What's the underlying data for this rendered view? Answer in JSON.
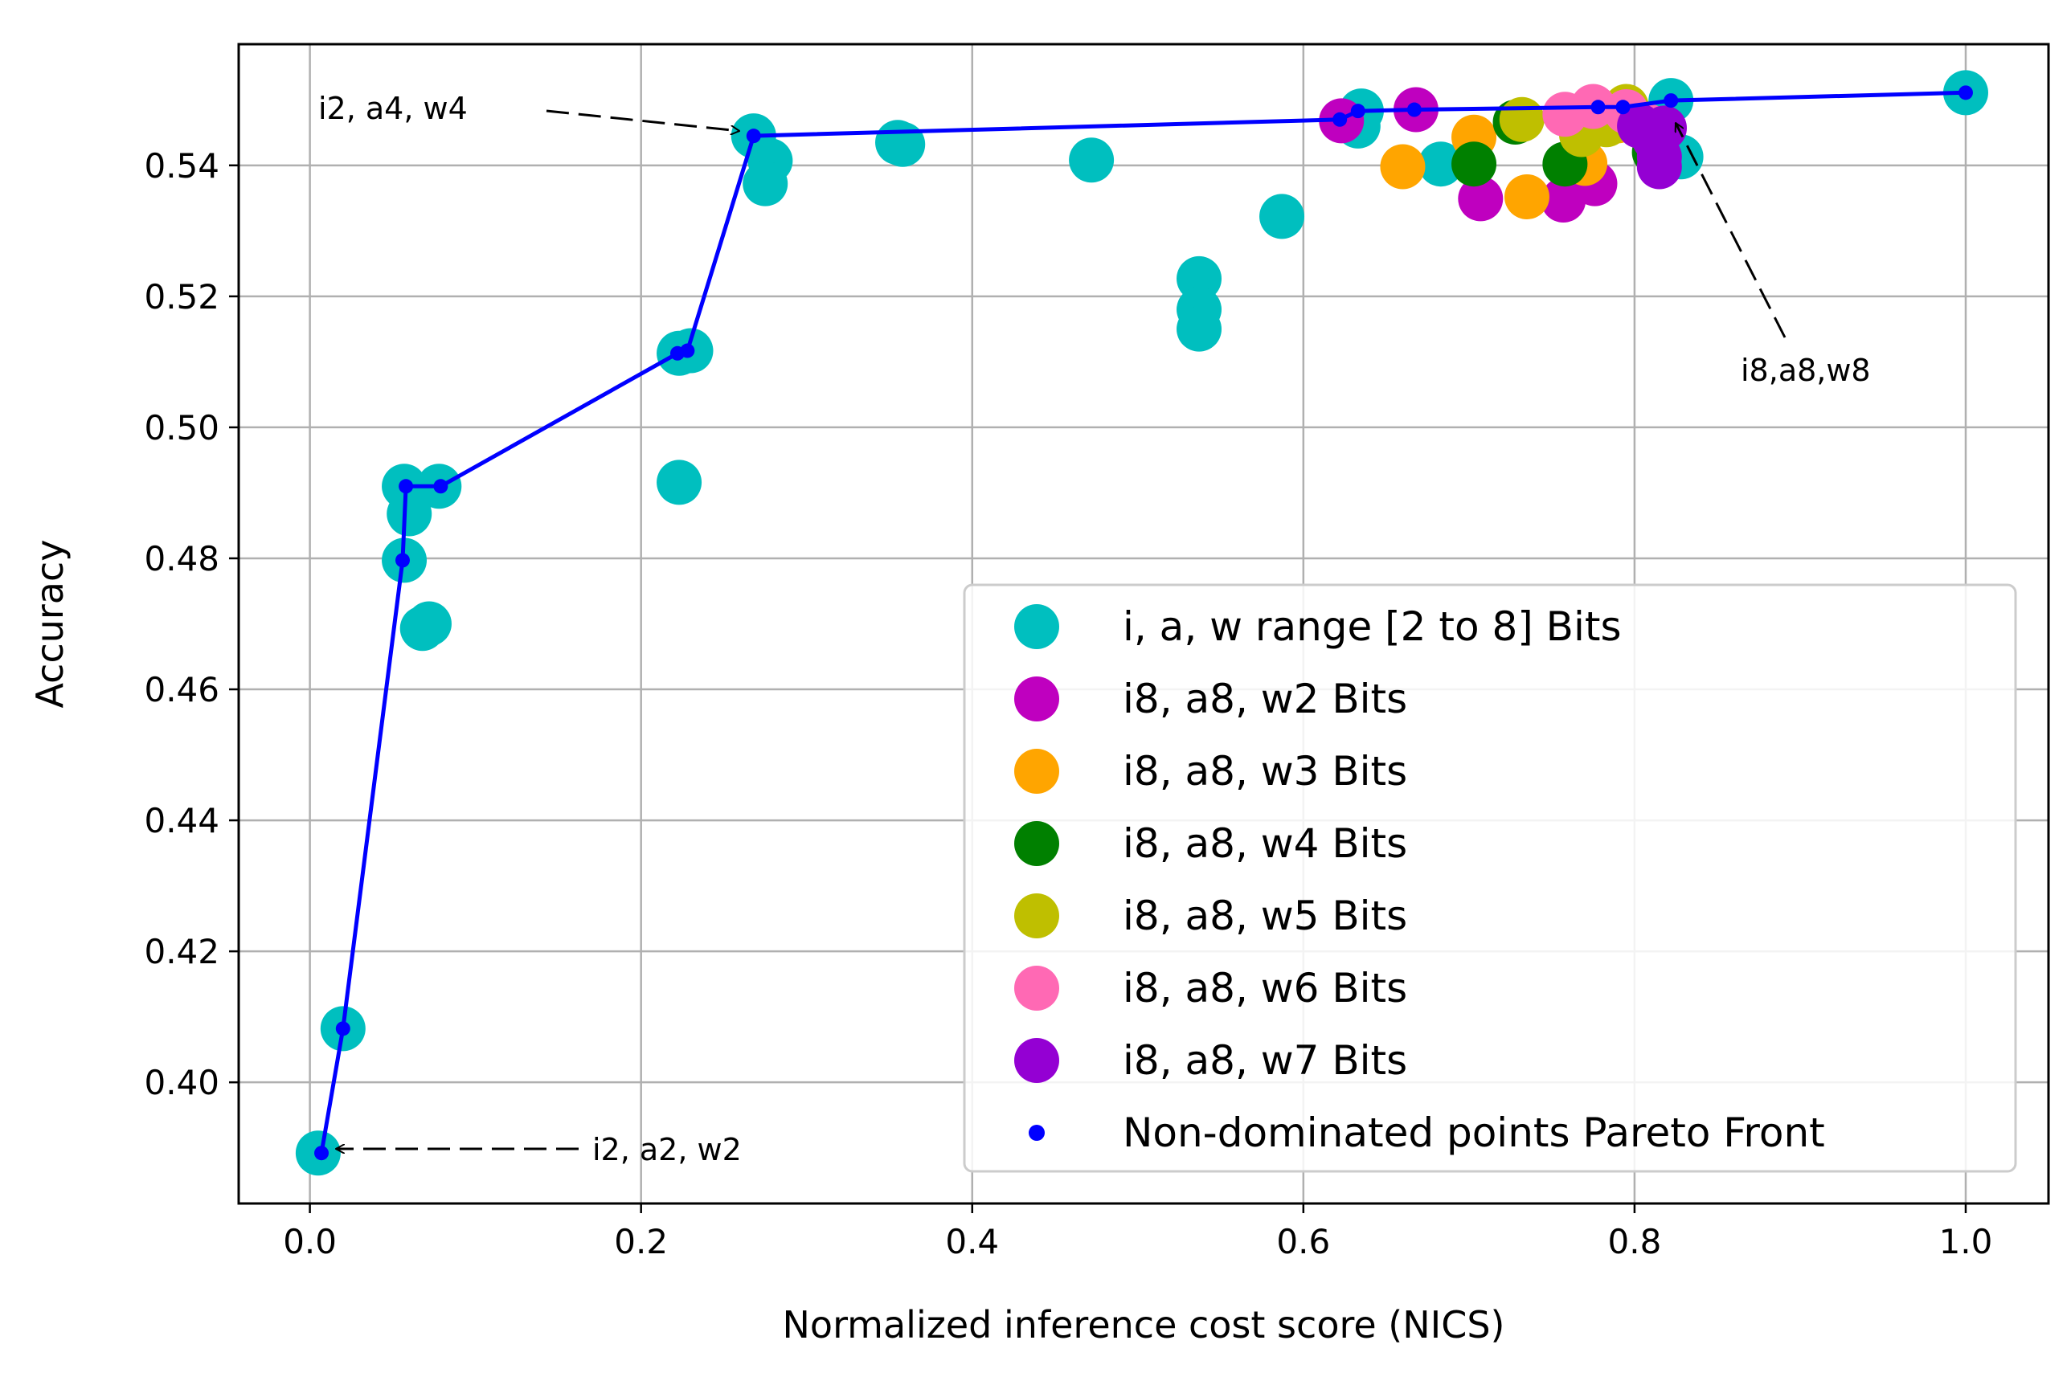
{
  "chart_data": {
    "type": "scatter",
    "title": "",
    "xlabel": "Normalized inference cost score (NICS)",
    "ylabel": "Accuracy",
    "xlim": [
      -0.043,
      1.05
    ],
    "ylim": [
      0.3815,
      0.5585
    ],
    "xticks": [
      0.0,
      0.2,
      0.4,
      0.6,
      0.8,
      1.0
    ],
    "xtick_labels": [
      "0.0",
      "0.2",
      "0.4",
      "0.6",
      "0.8",
      "1.0"
    ],
    "yticks": [
      0.4,
      0.42,
      0.44,
      0.46,
      0.48,
      0.5,
      0.52,
      0.54
    ],
    "ytick_labels": [
      "0.40",
      "0.42",
      "0.44",
      "0.46",
      "0.48",
      "0.50",
      "0.52",
      "0.54"
    ],
    "grid": true,
    "legend_position": "lower-right",
    "series": [
      {
        "name": "i, a, w range [2 to 8] Bits",
        "color": "#00bfbf",
        "points": [
          [
            0.005,
            0.3892
          ],
          [
            0.02,
            0.4082
          ],
          [
            0.057,
            0.491
          ],
          [
            0.06,
            0.4868
          ],
          [
            0.057,
            0.4797
          ],
          [
            0.068,
            0.4693
          ],
          [
            0.072,
            0.47
          ],
          [
            0.078,
            0.491
          ],
          [
            0.223,
            0.5113
          ],
          [
            0.23,
            0.5117
          ],
          [
            0.223,
            0.4916
          ],
          [
            0.268,
            0.5445
          ],
          [
            0.278,
            0.5407
          ],
          [
            0.275,
            0.5372
          ],
          [
            0.355,
            0.5435
          ],
          [
            0.358,
            0.5432
          ],
          [
            0.472,
            0.5408
          ],
          [
            0.537,
            0.5227
          ],
          [
            0.537,
            0.518
          ],
          [
            0.537,
            0.515
          ],
          [
            0.587,
            0.5322
          ],
          [
            0.635,
            0.5483
          ],
          [
            0.633,
            0.546
          ],
          [
            0.683,
            0.5402
          ],
          [
            0.822,
            0.5499
          ],
          [
            0.828,
            0.5413
          ],
          [
            1.0,
            0.5511
          ]
        ]
      },
      {
        "name": "i8, a8, w2 Bits",
        "color": "#bf00bf",
        "points": [
          [
            0.623,
            0.5468
          ],
          [
            0.668,
            0.5485
          ],
          [
            0.707,
            0.5349
          ],
          [
            0.757,
            0.5347
          ],
          [
            0.776,
            0.5372
          ],
          [
            0.775,
            0.5462
          ]
        ]
      },
      {
        "name": "i8, a8, w3 Bits",
        "color": "#ffa500",
        "points": [
          [
            0.66,
            0.5398
          ],
          [
            0.703,
            0.5443
          ],
          [
            0.735,
            0.5352
          ],
          [
            0.77,
            0.5403
          ],
          [
            0.79,
            0.5468
          ],
          [
            0.795,
            0.5482
          ]
        ]
      },
      {
        "name": "i8, a8, w4 Bits",
        "color": "#008000",
        "points": [
          [
            0.703,
            0.5402
          ],
          [
            0.728,
            0.5466
          ],
          [
            0.758,
            0.5402
          ],
          [
            0.812,
            0.542
          ]
        ]
      },
      {
        "name": "i8, a8, w5 Bits",
        "color": "#bfbf00",
        "points": [
          [
            0.732,
            0.547
          ],
          [
            0.768,
            0.5447
          ],
          [
            0.783,
            0.5462
          ],
          [
            0.795,
            0.549
          ]
        ]
      },
      {
        "name": "i8, a8, w6 Bits",
        "color": "#ff69b4",
        "points": [
          [
            0.758,
            0.5478
          ],
          [
            0.775,
            0.549
          ],
          [
            0.795,
            0.5482
          ],
          [
            0.808,
            0.546
          ]
        ]
      },
      {
        "name": "i8, a8, w7 Bits",
        "color": "#9400d3",
        "points": [
          [
            0.803,
            0.546
          ],
          [
            0.812,
            0.544
          ],
          [
            0.815,
            0.5413
          ],
          [
            0.815,
            0.5398
          ],
          [
            0.818,
            0.5457
          ]
        ]
      }
    ],
    "pareto_front": {
      "name": "Non-dominated points  Pareto Front",
      "color": "#0000ff",
      "points": [
        [
          0.007,
          0.3892
        ],
        [
          0.02,
          0.4082
        ],
        [
          0.056,
          0.4797
        ],
        [
          0.058,
          0.491
        ],
        [
          0.079,
          0.491
        ],
        [
          0.222,
          0.5113
        ],
        [
          0.228,
          0.5117
        ],
        [
          0.268,
          0.5445
        ],
        [
          0.622,
          0.547
        ],
        [
          0.633,
          0.5483
        ],
        [
          0.667,
          0.5485
        ],
        [
          0.778,
          0.5489
        ],
        [
          0.793,
          0.5489
        ],
        [
          0.822,
          0.5499
        ],
        [
          1.0,
          0.5511
        ]
      ]
    },
    "annotations": [
      {
        "text": "i2, a4, w4",
        "point": [
          0.268,
          0.5445
        ],
        "text_at": [
          0.0,
          0.5488
        ]
      },
      {
        "text": "i2, a2, w2",
        "point": [
          0.007,
          0.3892
        ],
        "text_at": [
          0.17,
          0.388
        ]
      },
      {
        "text": "i8,a8,w8",
        "point": [
          0.822,
          0.5499
        ],
        "text_at": [
          0.865,
          0.5075
        ]
      }
    ]
  }
}
